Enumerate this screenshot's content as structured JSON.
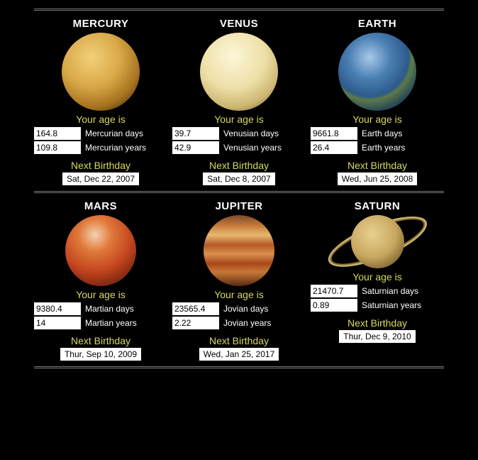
{
  "labels": {
    "age": "Your age is",
    "next": "Next Birthday"
  },
  "colors": {
    "bg": "#000",
    "accent": "#d8d85e"
  },
  "planets": [
    {
      "name": "MERCURY",
      "days": "164.8",
      "daysUnit": "Mercurian days",
      "years": "109.8",
      "yearsUnit": "Mercurian years",
      "date": "Sat, Dec 22, 2007",
      "img": {
        "size": 110,
        "grad": "radial-gradient(circle at 38% 32%,#f2d07a,#d9a948 40%,#a87420 68%,#3a2605 95%)"
      }
    },
    {
      "name": "VENUS",
      "days": "39.7",
      "daysUnit": "Venusian days",
      "years": "42.9",
      "yearsUnit": "Venusian years",
      "date": "Sat, Dec 8, 2007",
      "img": {
        "size": 110,
        "grad": "radial-gradient(circle at 42% 30%,#fdf6d8,#eee0a8 45%,#cbb671 72%,#5a4a1f 98%)"
      }
    },
    {
      "name": "EARTH",
      "days": "9661.8",
      "daysUnit": "Earth days",
      "years": "26.4",
      "yearsUnit": "Earth years",
      "date": "Wed, Jun 25, 2008",
      "img": {
        "size": 110,
        "grad": "radial-gradient(circle at 40% 32%,#a8c8e8,#4a7fb3 30%,#2d5a8a 55%,#5c7a4a 60%,#1a3a5a 80%,#08131f 98%)"
      }
    },
    {
      "name": "MARS",
      "days": "9380.4",
      "daysUnit": "Martian days",
      "years": "14",
      "yearsUnit": "Martian years",
      "date": "Thur, Sep 10, 2009",
      "img": {
        "size": 100,
        "grad": "radial-gradient(circle at 42% 28%,#f5d0b0,#e07a3a 25%,#c4461f 55%,#6d1f0c 85%,#1a0602 100%)"
      }
    },
    {
      "name": "JUPITER",
      "days": "23565.4",
      "daysUnit": "Jovian days",
      "years": "2.22",
      "yearsUnit": "Jovian years",
      "date": "Wed, Jan 25, 2017",
      "img": {
        "size": 100,
        "grad": "linear-gradient(180deg,#7a4a2a 0%,#c97a3a 15%,#e8b870 28%,#b85a28 42%,#d89050 55%,#a84818 68%,#c87838 80%,#5a2a10 100%)"
      }
    },
    {
      "name": "SATURN",
      "days": "21470.7",
      "daysUnit": "Saturnian days",
      "years": "0.89",
      "yearsUnit": "Saturnian years",
      "date": "Thur, Dec 9, 2010",
      "img": {
        "size": 75,
        "grad": "radial-gradient(circle at 40% 35%,#e8d090,#c8a860 50%,#6a5220 90%)",
        "ring": true
      }
    }
  ]
}
